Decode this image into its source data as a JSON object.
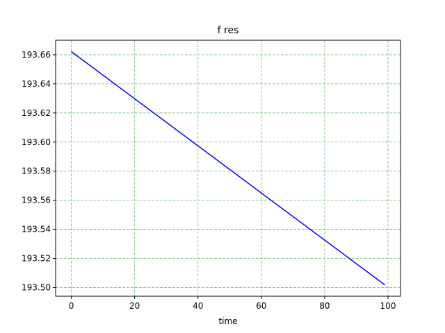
{
  "chart_data": {
    "type": "line",
    "title": "f res",
    "xlabel": "time",
    "ylabel": "",
    "xlim": [
      -4.95,
      103.95
    ],
    "ylim": [
      193.494,
      193.67
    ],
    "xticks": [
      0,
      20,
      40,
      60,
      80,
      100
    ],
    "yticks": [
      193.5,
      193.52,
      193.54,
      193.56,
      193.58,
      193.6,
      193.62,
      193.64,
      193.66
    ],
    "ytick_labels": [
      "193.50",
      "193.52",
      "193.54",
      "193.56",
      "193.58",
      "193.60",
      "193.62",
      "193.64",
      "193.66"
    ],
    "xtick_labels": [
      "0",
      "20",
      "40",
      "60",
      "80",
      "100"
    ],
    "grid": true,
    "grid_color": "#4caf50",
    "series": [
      {
        "color": "#0000ff",
        "x": [
          0,
          99
        ],
        "y": [
          193.6622,
          193.5018
        ]
      }
    ]
  }
}
